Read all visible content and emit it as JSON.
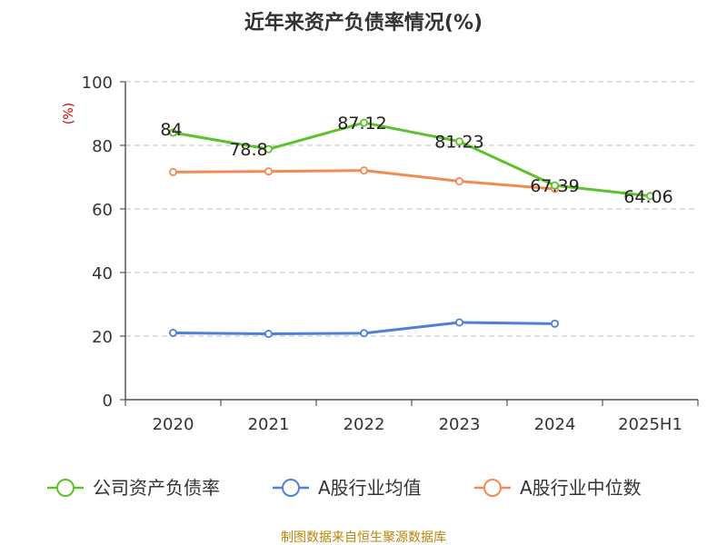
{
  "chart_data": {
    "type": "line",
    "title": "近年来资产负债率情况(%)",
    "ylabel": "(%)",
    "xlabel": "",
    "categories": [
      "2020",
      "2021",
      "2022",
      "2023",
      "2024",
      "2025H1"
    ],
    "ylim": [
      0,
      100
    ],
    "yticks": [
      0,
      20,
      40,
      60,
      80,
      100
    ],
    "grid": true,
    "legend_position": "bottom",
    "series": [
      {
        "name": "公司资产负债率",
        "color": "#5cc12a",
        "values": [
          84,
          78.8,
          87.12,
          81.23,
          67.39,
          64.06
        ],
        "labels": [
          "84",
          "78.8",
          "87.12",
          "81.23",
          "67.39",
          "64.06"
        ]
      },
      {
        "name": "A股行业均值",
        "color": "#4f7fd9",
        "values": [
          21,
          20.7,
          20.9,
          24.3,
          23.9,
          null
        ]
      },
      {
        "name": "A股行业中位数",
        "color": "#f28a55",
        "values": [
          71.6,
          71.8,
          72.1,
          68.7,
          66.3,
          null
        ]
      }
    ],
    "source": "制图数据来自恒生聚源数据库"
  }
}
